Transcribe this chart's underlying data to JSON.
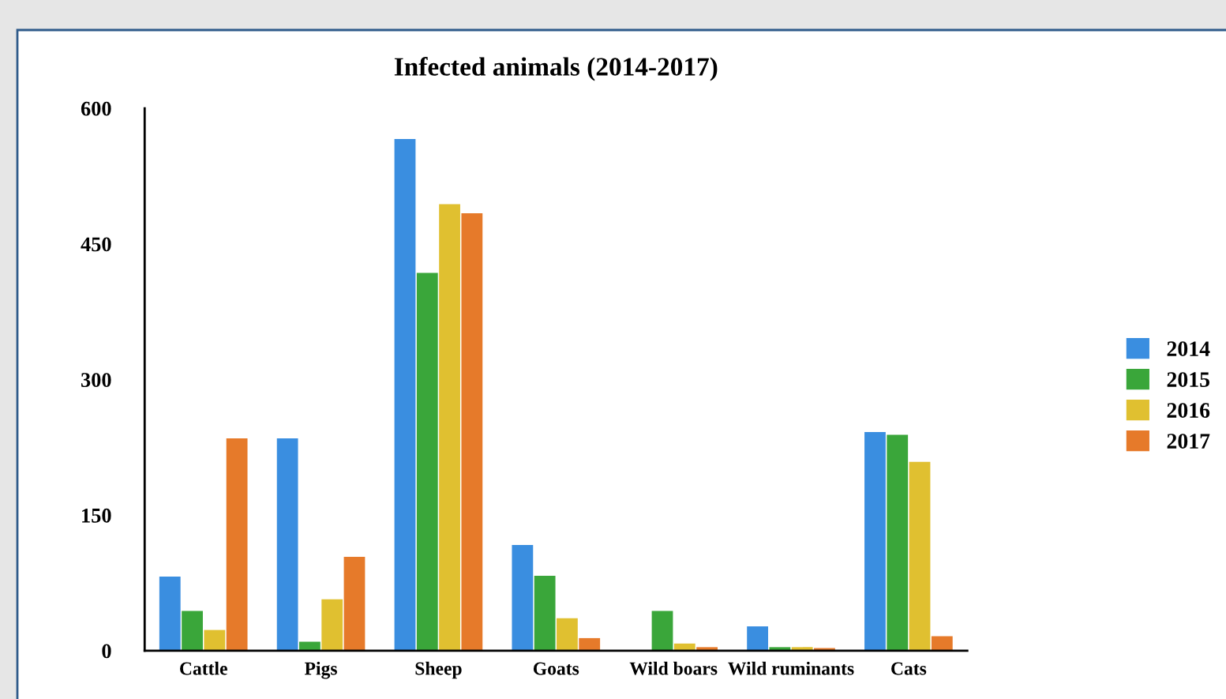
{
  "chart_data": {
    "type": "bar",
    "title": "Infected animals (2014-2017)",
    "categories": [
      "Cattle",
      "Pigs",
      "Sheep",
      "Goats",
      "Wild boars",
      "Wild ruminants",
      "Cats"
    ],
    "series": [
      {
        "name": "2014",
        "color": "#3a8ee0",
        "values": [
          82,
          235,
          566,
          117,
          0,
          27,
          242
        ]
      },
      {
        "name": "2015",
        "color": "#3aa63a",
        "values": [
          44,
          10,
          418,
          83,
          44,
          4,
          239
        ]
      },
      {
        "name": "2016",
        "color": "#e0c030",
        "values": [
          23,
          57,
          494,
          36,
          8,
          4,
          209
        ]
      },
      {
        "name": "2017",
        "color": "#e67a2a",
        "values": [
          235,
          104,
          484,
          14,
          4,
          3,
          16
        ]
      }
    ],
    "ylim": [
      0,
      600
    ],
    "yticks": [
      0,
      150,
      300,
      450,
      600
    ],
    "grid": false,
    "legend": "right"
  }
}
